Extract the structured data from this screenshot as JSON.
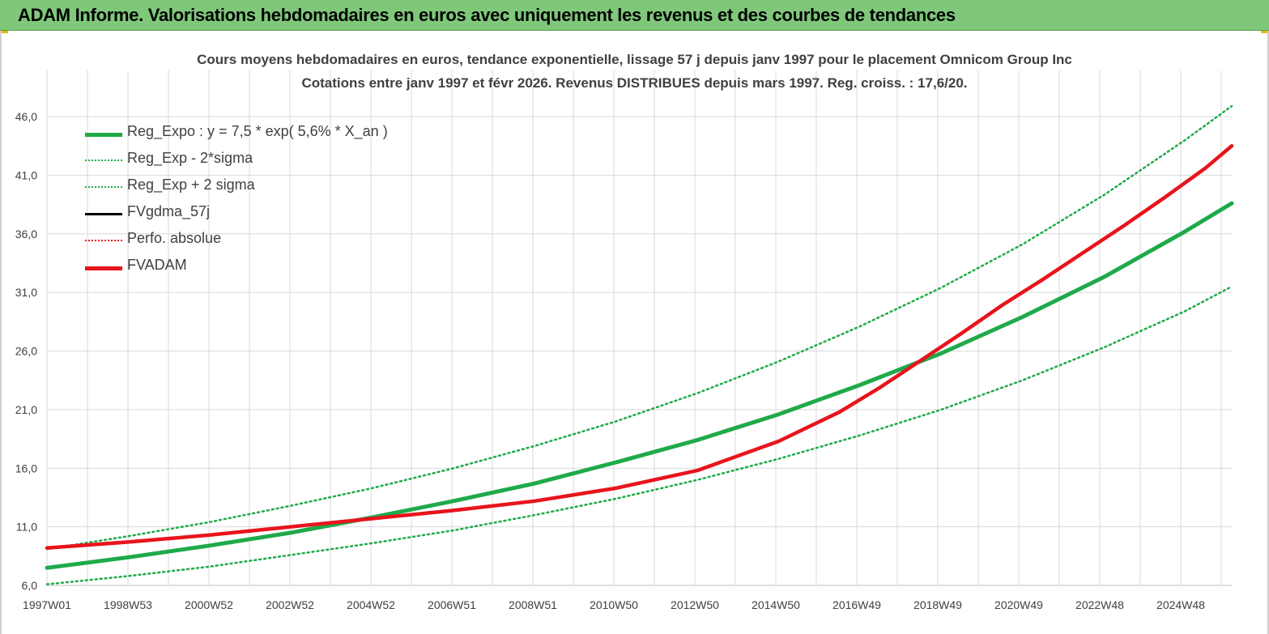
{
  "header": {
    "banner_title": "ADAM Informe. Valorisations hebdomadaires en euros avec uniquement les revenus et des courbes de tendances"
  },
  "colors": {
    "banner_bg": "#7fc87a",
    "reg_expo": "#1faa4a",
    "fvadam": "#e8141c",
    "fvgdma": "#000000",
    "perfo": "#e8141c",
    "grid": "#d9d9d9"
  },
  "chart_data": {
    "type": "line",
    "title": "Cours moyens hebdomadaires en euros, tendance exponentielle, lissage 57 j depuis janv 1997 pour le placement Omnicom Group Inc",
    "subtitle": "Cotations entre janv 1997 et févr 2026. Revenus DISTRIBUES depuis mars 1997. Reg. croiss. : 17,6/20.",
    "xlabel": "",
    "ylabel": "",
    "x_tick_labels": [
      "1997W01",
      "1998W53",
      "2000W52",
      "2002W52",
      "2004W52",
      "2006W51",
      "2008W51",
      "2010W50",
      "2012W50",
      "2014W50",
      "2016W49",
      "2018W49",
      "2020W49",
      "2022W48",
      "2024W48"
    ],
    "xlim": [
      1997.0,
      2026.15
    ],
    "ylim": [
      6.0,
      46.0
    ],
    "y_ticks": [
      "6,0",
      "11,0",
      "16,0",
      "21,0",
      "26,0",
      "31,0",
      "36,0",
      "41,0",
      "46,0"
    ],
    "y_tick_values": [
      6,
      11,
      16,
      21,
      26,
      31,
      36,
      41,
      46
    ],
    "grid": true,
    "legend_position": "top-left",
    "legend": [
      {
        "label": "Reg_Expo : y = 7,5 * exp( 5,6% *  X_an )",
        "style": "solid-thick",
        "color": "#1faa4a"
      },
      {
        "label": "Reg_Exp - 2*sigma",
        "style": "dotted",
        "color": "#1faa4a"
      },
      {
        "label": "Reg_Exp + 2 sigma",
        "style": "dotted",
        "color": "#1faa4a"
      },
      {
        "label": "FVgdma_57j",
        "style": "solid",
        "color": "#000000"
      },
      {
        "label": "Perfo. absolue",
        "style": "dotted",
        "color": "#e8141c"
      },
      {
        "label": "FVADAM",
        "style": "solid-thick",
        "color": "#e8141c"
      }
    ],
    "series": [
      {
        "name": "Reg_Expo : y = 7,5 * exp( 5,6% *  X_an )",
        "x": [
          1997.0,
          1999.0,
          2001.0,
          2003.0,
          2005.0,
          2007.0,
          2009.0,
          2011.0,
          2013.0,
          2015.0,
          2017.0,
          2019.0,
          2021.0,
          2023.0,
          2025.0,
          2026.15
        ],
        "values": [
          7.5,
          8.4,
          9.4,
          10.5,
          11.8,
          13.2,
          14.7,
          16.5,
          18.4,
          20.6,
          23.1,
          25.8,
          28.9,
          32.3,
          36.2,
          38.6
        ]
      },
      {
        "name": "Reg_Exp - 2*sigma",
        "x": [
          1997.0,
          1999.0,
          2001.0,
          2003.0,
          2005.0,
          2007.0,
          2009.0,
          2011.0,
          2013.0,
          2015.0,
          2017.0,
          2019.0,
          2021.0,
          2023.0,
          2025.0,
          2026.15
        ],
        "values": [
          6.1,
          6.8,
          7.6,
          8.6,
          9.6,
          10.7,
          12.0,
          13.4,
          15.0,
          16.8,
          18.8,
          21.0,
          23.5,
          26.3,
          29.4,
          31.5
        ]
      },
      {
        "name": "Reg_Exp + 2 sigma",
        "x": [
          1997.0,
          1999.0,
          2001.0,
          2003.0,
          2005.0,
          2007.0,
          2009.0,
          2011.0,
          2013.0,
          2015.0,
          2017.0,
          2019.0,
          2021.0,
          2023.0,
          2025.0,
          2026.15
        ],
        "values": [
          9.1,
          10.2,
          11.4,
          12.8,
          14.3,
          16.0,
          17.9,
          20.0,
          22.4,
          25.1,
          28.1,
          31.4,
          35.1,
          39.3,
          44.0,
          46.9
        ]
      },
      {
        "name": "FVADAM",
        "x": [
          1997.0,
          1999.0,
          2001.0,
          2003.0,
          2005.0,
          2007.0,
          2009.0,
          2011.0,
          2013.0,
          2015.0,
          2016.5,
          2017.5,
          2018.5,
          2019.5,
          2020.5,
          2021.5,
          2022.5,
          2023.5,
          2024.5,
          2025.5,
          2026.15
        ],
        "values": [
          9.2,
          9.7,
          10.3,
          11.0,
          11.7,
          12.4,
          13.2,
          14.3,
          15.8,
          18.3,
          20.8,
          22.9,
          25.2,
          27.5,
          29.9,
          32.1,
          34.4,
          36.7,
          39.1,
          41.6,
          43.5
        ]
      }
    ]
  }
}
